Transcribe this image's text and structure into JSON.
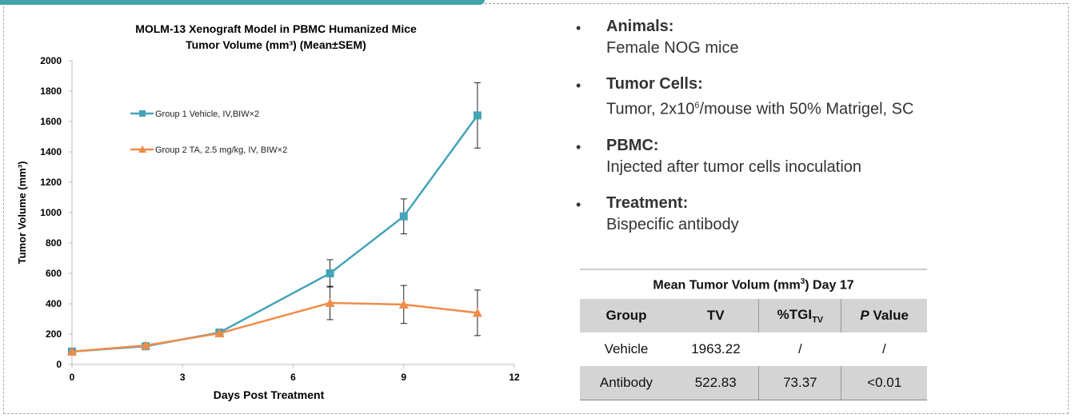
{
  "chart_data": {
    "type": "line",
    "title": "MOLM-13 Xenograft Model in PBMC Humanized Mice",
    "subtitle": "Tumor Volume (mm³)  (Mean±SEM)",
    "xlabel": "Days Post Treatment",
    "ylabel": "Tumor Volume (mm³)",
    "xlim": [
      0,
      12
    ],
    "ylim": [
      0,
      2000
    ],
    "xticks": [
      0,
      3,
      6,
      9,
      12
    ],
    "yticks": [
      0,
      200,
      400,
      600,
      800,
      1000,
      1200,
      1400,
      1600,
      1800,
      2000
    ],
    "legend": "top-left",
    "series": [
      {
        "name": "Group 1 Vehicle, IV,BIW×2",
        "color": "#44a4b8",
        "marker": "square",
        "x": [
          0,
          2,
          4,
          7,
          9,
          11
        ],
        "y": [
          85,
          120,
          210,
          600,
          975,
          1640
        ],
        "err": [
          0,
          0,
          0,
          90,
          115,
          215
        ]
      },
      {
        "name": "Group 2 TA, 2.5 mg/kg, IV, BIW×2",
        "color": "#f08c4a",
        "marker": "triangle",
        "x": [
          0,
          2,
          4,
          7,
          9,
          11
        ],
        "y": [
          85,
          125,
          205,
          405,
          395,
          340
        ],
        "err": [
          0,
          0,
          0,
          110,
          125,
          150
        ]
      }
    ]
  },
  "bullets": [
    {
      "heading": "Animals:",
      "text": "Female NOG mice"
    },
    {
      "heading": "Tumor Cells:",
      "text_pre": "Tumor, 2x10",
      "sup": "6",
      "text_post": "/mouse with 50% Matrigel, SC"
    },
    {
      "heading": "PBMC:",
      "text": "Injected after tumor cells inoculation"
    },
    {
      "heading": "Treatment:",
      "text": "Bispecific antibody"
    }
  ],
  "table": {
    "caption_pre": "Mean Tumor Volum (mm",
    "caption_sup": "3",
    "caption_post": ") Day 17",
    "headers": {
      "group": "Group",
      "tv": "TV",
      "tgi": "%TGI",
      "tgi_sub": "TV",
      "p_italic": "P",
      "p_rest": " Value"
    },
    "rows": [
      {
        "group": "Vehicle",
        "tv": "1963.22",
        "tgi": "/",
        "p": "/"
      },
      {
        "group": "Antibody",
        "tv": "522.83",
        "tgi": "73.37",
        "p": "<0.01"
      }
    ]
  }
}
